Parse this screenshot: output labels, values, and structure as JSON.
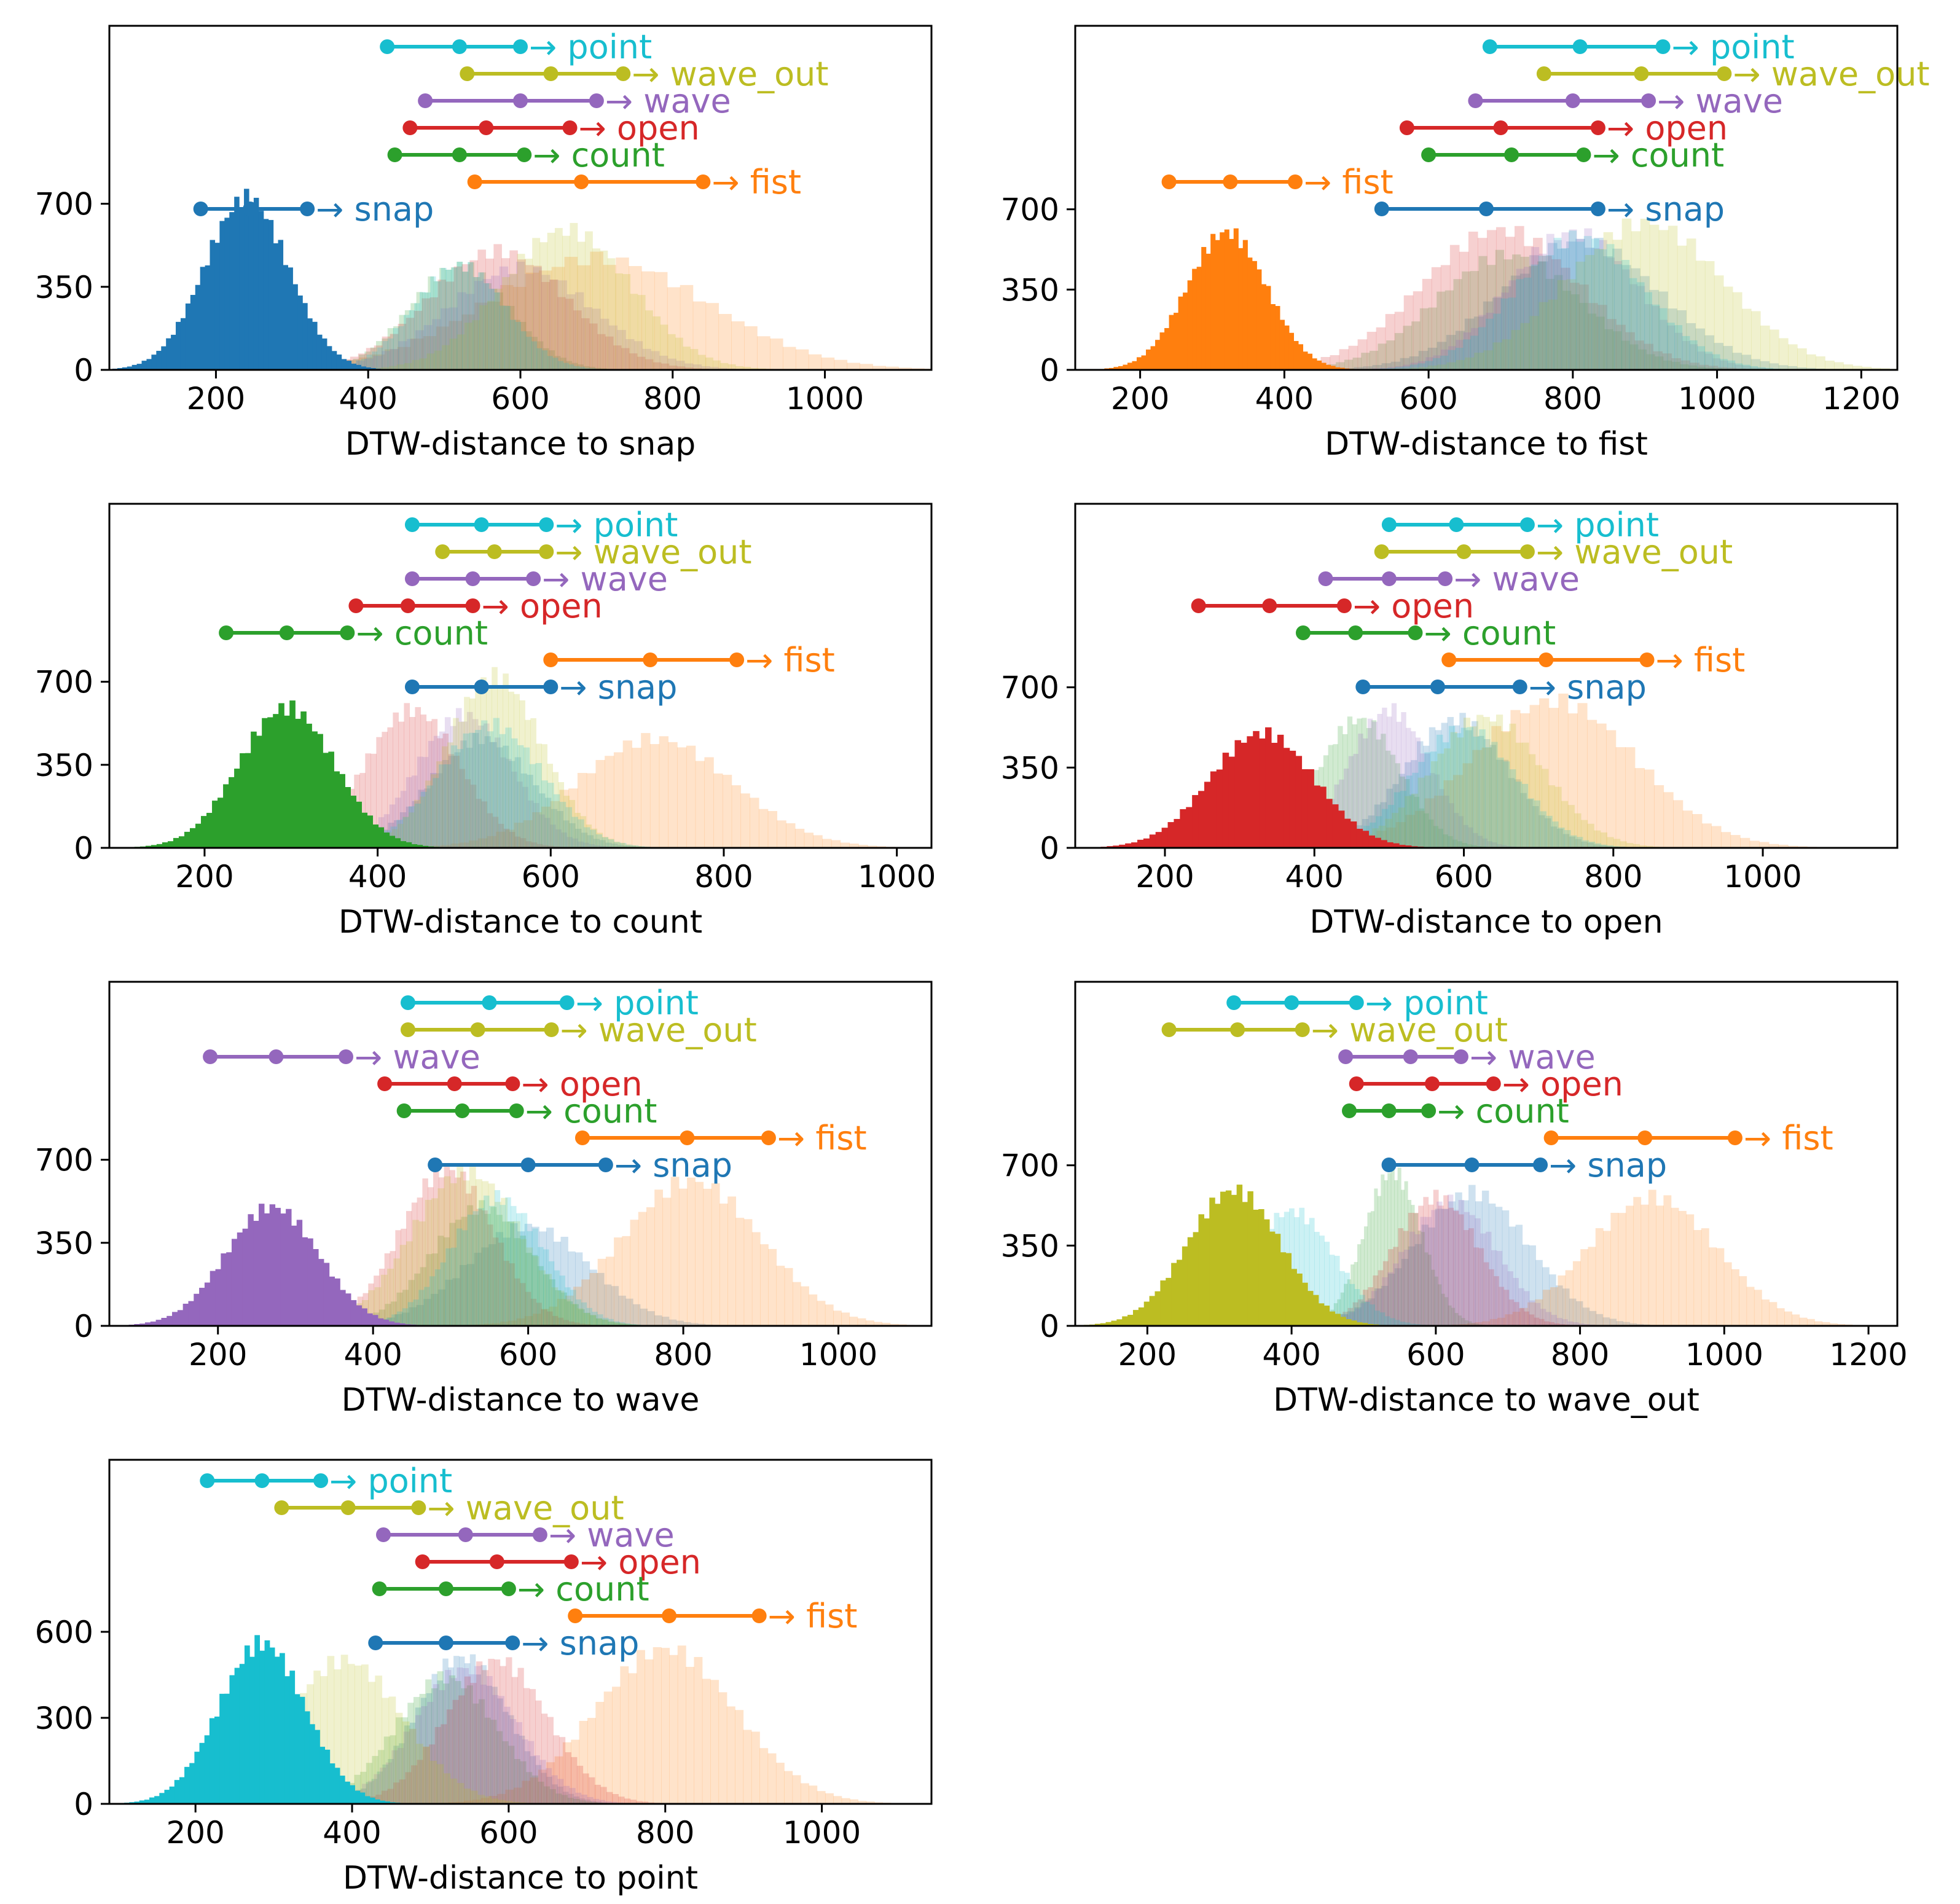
{
  "colors": {
    "snap": "#1f77b4",
    "fist": "#ff7f0e",
    "count": "#2ca02c",
    "open": "#d62728",
    "wave": "#9467bd",
    "wave_out": "#bcbd22",
    "point": "#17becf"
  },
  "chart_data": [
    {
      "type": "histogram",
      "target": "snap",
      "xlabel": "DTW-distance to snap",
      "xlim": [
        60,
        1140
      ],
      "ylim": [
        0,
        1450
      ],
      "xticks": [
        200,
        400,
        600,
        800,
        1000
      ],
      "yticks": [
        0,
        350,
        700
      ],
      "series": [
        {
          "name": "snap",
          "mean": 240,
          "sd": 55,
          "peak": 720
        },
        {
          "name": "fist",
          "mean": 700,
          "sd": 145,
          "peak": 470
        },
        {
          "name": "count",
          "mean": 520,
          "sd": 65,
          "peak": 440
        },
        {
          "name": "open",
          "mean": 570,
          "sd": 90,
          "peak": 500
        },
        {
          "name": "wave",
          "mean": 600,
          "sd": 95,
          "peak": 430
        },
        {
          "name": "wave_out",
          "mean": 660,
          "sd": 85,
          "peak": 590
        },
        {
          "name": "point",
          "mean": 520,
          "sd": 60,
          "peak": 440
        }
      ],
      "iqr": [
        {
          "name": "point",
          "label": "→ point",
          "q1": 425,
          "median": 520,
          "q3": 600
        },
        {
          "name": "wave_out",
          "label": "→ wave_out",
          "q1": 530,
          "median": 640,
          "q3": 735
        },
        {
          "name": "wave",
          "label": "→ wave",
          "q1": 475,
          "median": 600,
          "q3": 700
        },
        {
          "name": "open",
          "label": "→ open",
          "q1": 455,
          "median": 555,
          "q3": 665
        },
        {
          "name": "count",
          "label": "→ count",
          "q1": 435,
          "median": 520,
          "q3": 605
        },
        {
          "name": "fist",
          "label": "→ fist",
          "q1": 540,
          "median": 680,
          "q3": 840
        },
        {
          "name": "snap",
          "label": "→ snap",
          "q1": 180,
          "median": 245,
          "q3": 320
        }
      ]
    },
    {
      "type": "histogram",
      "target": "fist",
      "xlabel": "DTW-distance to fist",
      "xlim": [
        110,
        1250
      ],
      "ylim": [
        0,
        1500
      ],
      "xticks": [
        200,
        400,
        600,
        800,
        1000,
        1200
      ],
      "yticks": [
        0,
        350,
        700
      ],
      "series": [
        {
          "name": "snap",
          "mean": 810,
          "sd": 110,
          "peak": 560
        },
        {
          "name": "fist",
          "mean": 320,
          "sd": 55,
          "peak": 600
        },
        {
          "name": "count",
          "mean": 710,
          "sd": 100,
          "peak": 500
        },
        {
          "name": "open",
          "mean": 700,
          "sd": 110,
          "peak": 610
        },
        {
          "name": "wave",
          "mean": 800,
          "sd": 90,
          "peak": 600
        },
        {
          "name": "wave_out",
          "mean": 900,
          "sd": 110,
          "peak": 640
        },
        {
          "name": "point",
          "mean": 810,
          "sd": 90,
          "peak": 580
        }
      ],
      "iqr": [
        {
          "name": "point",
          "label": "→ point",
          "q1": 685,
          "median": 810,
          "q3": 925
        },
        {
          "name": "wave_out",
          "label": "→ wave_out",
          "q1": 760,
          "median": 895,
          "q3": 1010
        },
        {
          "name": "wave",
          "label": "→ wave",
          "q1": 665,
          "median": 800,
          "q3": 905
        },
        {
          "name": "open",
          "label": "→ open",
          "q1": 570,
          "median": 700,
          "q3": 835
        },
        {
          "name": "count",
          "label": "→ count",
          "q1": 600,
          "median": 715,
          "q3": 815
        },
        {
          "name": "fist",
          "label": "→ fist",
          "q1": 240,
          "median": 325,
          "q3": 415
        },
        {
          "name": "snap",
          "label": "→ snap",
          "q1": 535,
          "median": 680,
          "q3": 835
        }
      ]
    },
    {
      "type": "histogram",
      "target": "count",
      "xlabel": "DTW-distance to count",
      "xlim": [
        90,
        1040
      ],
      "ylim": [
        0,
        1450
      ],
      "xticks": [
        200,
        400,
        600,
        800,
        1000
      ],
      "yticks": [
        0,
        350,
        700
      ],
      "series": [
        {
          "name": "snap",
          "mean": 520,
          "sd": 60,
          "peak": 460
        },
        {
          "name": "fist",
          "mean": 720,
          "sd": 90,
          "peak": 460
        },
        {
          "name": "count",
          "mean": 295,
          "sd": 55,
          "peak": 590
        },
        {
          "name": "open",
          "mean": 440,
          "sd": 55,
          "peak": 580
        },
        {
          "name": "wave",
          "mean": 500,
          "sd": 55,
          "peak": 560
        },
        {
          "name": "wave_out",
          "mean": 535,
          "sd": 55,
          "peak": 720
        },
        {
          "name": "point",
          "mean": 530,
          "sd": 60,
          "peak": 520
        }
      ],
      "iqr": [
        {
          "name": "point",
          "label": "→ point",
          "q1": 440,
          "median": 520,
          "q3": 595
        },
        {
          "name": "wave_out",
          "label": "→ wave_out",
          "q1": 475,
          "median": 535,
          "q3": 595
        },
        {
          "name": "wave",
          "label": "→ wave",
          "q1": 440,
          "median": 510,
          "q3": 580
        },
        {
          "name": "open",
          "label": "→ open",
          "q1": 375,
          "median": 435,
          "q3": 510
        },
        {
          "name": "count",
          "label": "→ count",
          "q1": 225,
          "median": 295,
          "q3": 365
        },
        {
          "name": "fist",
          "label": "→ fist",
          "q1": 600,
          "median": 715,
          "q3": 815
        },
        {
          "name": "snap",
          "label": "→ snap",
          "q1": 440,
          "median": 520,
          "q3": 600
        }
      ]
    },
    {
      "type": "histogram",
      "target": "open",
      "xlabel": "DTW-distance to open",
      "xlim": [
        80,
        1180
      ],
      "ylim": [
        0,
        1500
      ],
      "xticks": [
        200,
        400,
        600,
        800,
        1000
      ],
      "yticks": [
        0,
        350,
        700
      ],
      "series": [
        {
          "name": "snap",
          "mean": 590,
          "sd": 70,
          "peak": 560
        },
        {
          "name": "fist",
          "mean": 720,
          "sd": 110,
          "peak": 640
        },
        {
          "name": "count",
          "mean": 460,
          "sd": 55,
          "peak": 560
        },
        {
          "name": "open",
          "mean": 330,
          "sd": 70,
          "peak": 500
        },
        {
          "name": "wave",
          "mean": 500,
          "sd": 55,
          "peak": 600
        },
        {
          "name": "wave_out",
          "mean": 630,
          "sd": 75,
          "peak": 570
        },
        {
          "name": "point",
          "mean": 600,
          "sd": 70,
          "peak": 520
        }
      ],
      "iqr": [
        {
          "name": "point",
          "label": "→ point",
          "q1": 500,
          "median": 590,
          "q3": 685
        },
        {
          "name": "wave_out",
          "label": "→ wave_out",
          "q1": 490,
          "median": 600,
          "q3": 685
        },
        {
          "name": "wave",
          "label": "→ wave",
          "q1": 415,
          "median": 500,
          "q3": 575
        },
        {
          "name": "open",
          "label": "→ open",
          "q1": 245,
          "median": 340,
          "q3": 440
        },
        {
          "name": "count",
          "label": "→ count",
          "q1": 385,
          "median": 455,
          "q3": 535
        },
        {
          "name": "fist",
          "label": "→ fist",
          "q1": 580,
          "median": 710,
          "q3": 845
        },
        {
          "name": "snap",
          "label": "→ snap",
          "q1": 465,
          "median": 565,
          "q3": 675
        }
      ]
    },
    {
      "type": "histogram",
      "target": "wave",
      "xlabel": "DTW-distance to wave",
      "xlim": [
        60,
        1120
      ],
      "ylim": [
        0,
        1450
      ],
      "xticks": [
        200,
        400,
        600,
        800,
        1000
      ],
      "yticks": [
        0,
        350,
        700
      ],
      "series": [
        {
          "name": "snap",
          "mean": 600,
          "sd": 80,
          "peak": 420
        },
        {
          "name": "fist",
          "mean": 810,
          "sd": 90,
          "peak": 610
        },
        {
          "name": "count",
          "mean": 540,
          "sd": 65,
          "peak": 500
        },
        {
          "name": "open",
          "mean": 495,
          "sd": 60,
          "peak": 660
        },
        {
          "name": "wave",
          "mean": 270,
          "sd": 60,
          "peak": 500
        },
        {
          "name": "wave_out",
          "mean": 520,
          "sd": 70,
          "peak": 650
        },
        {
          "name": "point",
          "mean": 560,
          "sd": 60,
          "peak": 540
        }
      ],
      "iqr": [
        {
          "name": "point",
          "label": "→ point",
          "q1": 445,
          "median": 550,
          "q3": 650
        },
        {
          "name": "wave_out",
          "label": "→ wave_out",
          "q1": 445,
          "median": 535,
          "q3": 630
        },
        {
          "name": "wave",
          "label": "→ wave",
          "q1": 190,
          "median": 275,
          "q3": 365
        },
        {
          "name": "open",
          "label": "→ open",
          "q1": 415,
          "median": 505,
          "q3": 580
        },
        {
          "name": "count",
          "label": "→ count",
          "q1": 440,
          "median": 515,
          "q3": 585
        },
        {
          "name": "fist",
          "label": "→ fist",
          "q1": 670,
          "median": 805,
          "q3": 910
        },
        {
          "name": "snap",
          "label": "→ snap",
          "q1": 480,
          "median": 600,
          "q3": 700
        }
      ]
    },
    {
      "type": "histogram",
      "target": "wave_out",
      "xlabel": "DTW-distance to wave_out",
      "xlim": [
        100,
        1240
      ],
      "ylim": [
        0,
        1500
      ],
      "xticks": [
        200,
        400,
        600,
        800,
        1000,
        1200
      ],
      "yticks": [
        0,
        350,
        700
      ],
      "series": [
        {
          "name": "snap",
          "mean": 650,
          "sd": 80,
          "peak": 580
        },
        {
          "name": "fist",
          "mean": 900,
          "sd": 90,
          "peak": 560
        },
        {
          "name": "count",
          "mean": 540,
          "sd": 40,
          "peak": 670
        },
        {
          "name": "open",
          "mean": 600,
          "sd": 60,
          "peak": 560
        },
        {
          "name": "wave",
          "mean": 620,
          "sd": 65,
          "peak": 540
        },
        {
          "name": "wave_out",
          "mean": 320,
          "sd": 65,
          "peak": 590
        },
        {
          "name": "point",
          "mean": 400,
          "sd": 60,
          "peak": 500
        }
      ],
      "iqr": [
        {
          "name": "point",
          "label": "→ point",
          "q1": 320,
          "median": 400,
          "q3": 490
        },
        {
          "name": "wave_out",
          "label": "→ wave_out",
          "q1": 230,
          "median": 325,
          "q3": 415
        },
        {
          "name": "wave",
          "label": "→ wave",
          "q1": 475,
          "median": 565,
          "q3": 635
        },
        {
          "name": "open",
          "label": "→ open",
          "q1": 490,
          "median": 595,
          "q3": 680
        },
        {
          "name": "count",
          "label": "→ count",
          "q1": 480,
          "median": 535,
          "q3": 590
        },
        {
          "name": "fist",
          "label": "→ fist",
          "q1": 760,
          "median": 890,
          "q3": 1015
        },
        {
          "name": "snap",
          "label": "→ snap",
          "q1": 535,
          "median": 650,
          "q3": 745
        }
      ]
    },
    {
      "type": "histogram",
      "target": "point",
      "xlabel": "DTW-distance to point",
      "xlim": [
        90,
        1140
      ],
      "ylim": [
        0,
        1200
      ],
      "xticks": [
        200,
        400,
        600,
        800,
        1000
      ],
      "yticks": [
        0,
        300,
        600
      ],
      "series": [
        {
          "name": "snap",
          "mean": 540,
          "sd": 60,
          "peak": 510
        },
        {
          "name": "fist",
          "mean": 800,
          "sd": 90,
          "peak": 540
        },
        {
          "name": "count",
          "mean": 520,
          "sd": 65,
          "peak": 440
        },
        {
          "name": "open",
          "mean": 585,
          "sd": 65,
          "peak": 500
        },
        {
          "name": "wave",
          "mean": 545,
          "sd": 65,
          "peak": 470
        },
        {
          "name": "wave_out",
          "mean": 390,
          "sd": 75,
          "peak": 500
        },
        {
          "name": "point",
          "mean": 285,
          "sd": 55,
          "peak": 560
        }
      ],
      "iqr": [
        {
          "name": "point",
          "label": "→ point",
          "q1": 215,
          "median": 285,
          "q3": 360
        },
        {
          "name": "wave_out",
          "label": "→ wave_out",
          "q1": 310,
          "median": 395,
          "q3": 485
        },
        {
          "name": "wave",
          "label": "→ wave",
          "q1": 440,
          "median": 545,
          "q3": 640
        },
        {
          "name": "open",
          "label": "→ open",
          "q1": 490,
          "median": 585,
          "q3": 680
        },
        {
          "name": "count",
          "label": "→ count",
          "q1": 435,
          "median": 520,
          "q3": 600
        },
        {
          "name": "fist",
          "label": "→ fist",
          "q1": 685,
          "median": 805,
          "q3": 920
        },
        {
          "name": "snap",
          "label": "→ snap",
          "q1": 430,
          "median": 520,
          "q3": 605
        }
      ]
    }
  ]
}
